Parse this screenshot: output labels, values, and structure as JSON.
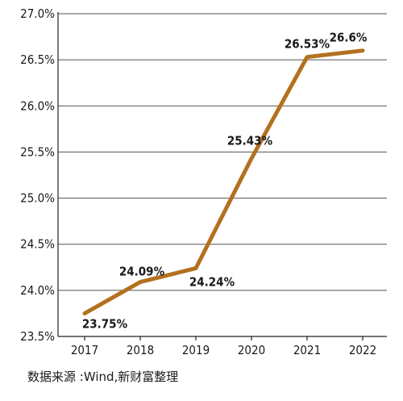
{
  "chart_data": {
    "type": "line",
    "x": [
      "2017",
      "2018",
      "2019",
      "2020",
      "2021",
      "2022"
    ],
    "series": [
      {
        "values": [
          23.75,
          24.09,
          24.24,
          25.43,
          26.53,
          26.6
        ]
      }
    ],
    "data_labels": [
      "23.75%",
      "24.09%",
      "24.24%",
      "25.43%",
      "26.53%",
      "26.6%"
    ],
    "y_ticks": [
      23.5,
      24.0,
      24.5,
      25.0,
      25.5,
      26.0,
      26.5,
      27.0
    ],
    "y_tick_labels": [
      "23.5%",
      "24.0%",
      "24.5%",
      "25.0%",
      "25.5%",
      "26.0%",
      "26.5%",
      "27.0%"
    ],
    "ylim": [
      23.5,
      27.0
    ],
    "grid": "horizontal",
    "line_color": "#b3711f",
    "grid_color": "#555555"
  },
  "source_text": "数据来源 :Wind,新财富整理"
}
